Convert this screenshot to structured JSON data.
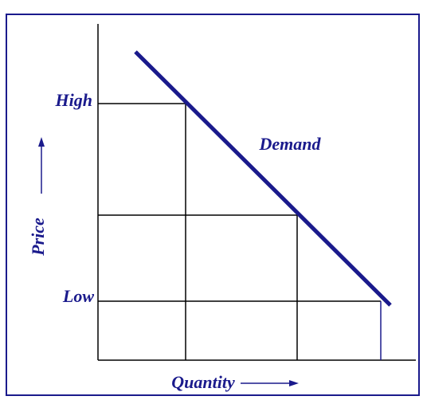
{
  "curve": {
    "label": "Demand"
  },
  "y_axis": {
    "title": "Price",
    "high_label": "High",
    "low_label": "Low"
  },
  "x_axis": {
    "title": "Quantity"
  }
}
